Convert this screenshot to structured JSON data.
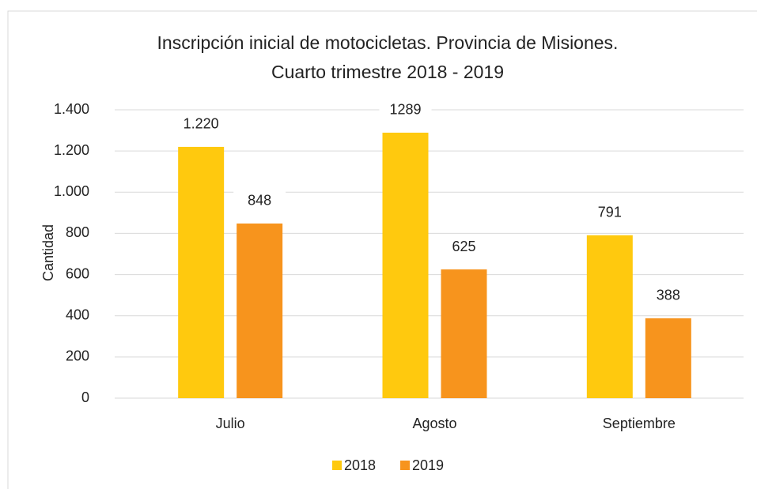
{
  "chart_data": {
    "type": "bar",
    "title": [
      "Inscripción inicial de motocicletas. Provincia de Misiones.",
      "Cuarto trimestre 2018 - 2019"
    ],
    "y_label": "Cantidad",
    "categories": [
      "Julio",
      "Agosto",
      "Septiembre"
    ],
    "series": [
      {
        "name": "2018",
        "color": "#ffc90e",
        "values": [
          1220,
          1289,
          791
        ],
        "value_labels": [
          "1.220",
          "1289",
          "791"
        ]
      },
      {
        "name": "2019",
        "color": "#f7941d",
        "values": [
          848,
          625,
          388
        ],
        "value_labels": [
          "848",
          "625",
          "388"
        ]
      }
    ],
    "ylim": [
      0,
      1400
    ],
    "yticks": [
      0,
      200,
      400,
      600,
      800,
      {
        "value": 1000,
        "label": "1.000"
      },
      {
        "value": 1200,
        "label": "1.200"
      },
      {
        "value": 1400,
        "label": "1.400"
      }
    ],
    "grid": true,
    "legend": "bottom"
  }
}
